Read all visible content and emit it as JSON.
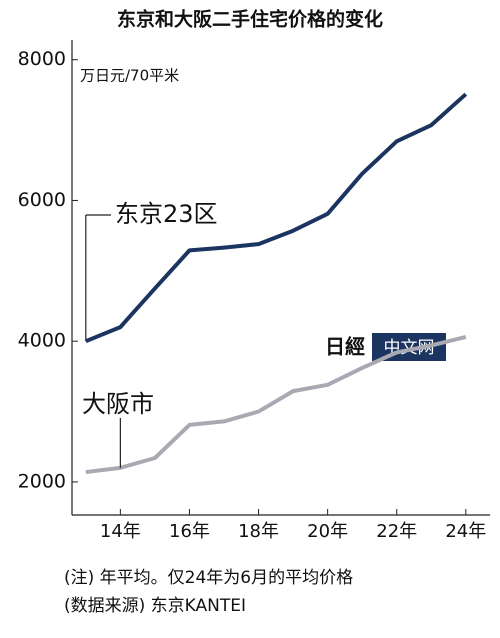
{
  "chart_data": {
    "type": "line",
    "title": "东京和大阪二手住宅价格的变化",
    "y_label": "万日元/70平米",
    "x": [
      13,
      14,
      15,
      16,
      17,
      18,
      19,
      20,
      21,
      22,
      23,
      24
    ],
    "series": [
      {
        "name": "东京23区",
        "color": "#1b3560",
        "values": [
          4000,
          4200,
          4750,
          5290,
          5330,
          5380,
          5570,
          5810,
          6380,
          6840,
          7070,
          7510
        ]
      },
      {
        "name": "大阪市",
        "color": "#a9a9b3",
        "values": [
          2140,
          2200,
          2340,
          2810,
          2860,
          3000,
          3290,
          3380,
          3620,
          3840,
          3940,
          4060
        ]
      }
    ],
    "xlim": [
      12.6,
      24.7
    ],
    "xticks": [
      {
        "value": 14,
        "label": "14年"
      },
      {
        "value": 16,
        "label": "16年"
      },
      {
        "value": 18,
        "label": "18年"
      },
      {
        "value": 20,
        "label": "20年"
      },
      {
        "value": 22,
        "label": "22年"
      },
      {
        "value": 24,
        "label": "24年"
      }
    ],
    "ylim": [
      1530,
      8280
    ],
    "yticks": [
      2000,
      4000,
      6000,
      8000
    ],
    "grid": false,
    "notes": [
      "(注) 年平均。仅24年为6月的平均价格",
      "(数据来源) 东京KANTEI"
    ],
    "watermark": [
      "日經",
      "中文网"
    ]
  }
}
